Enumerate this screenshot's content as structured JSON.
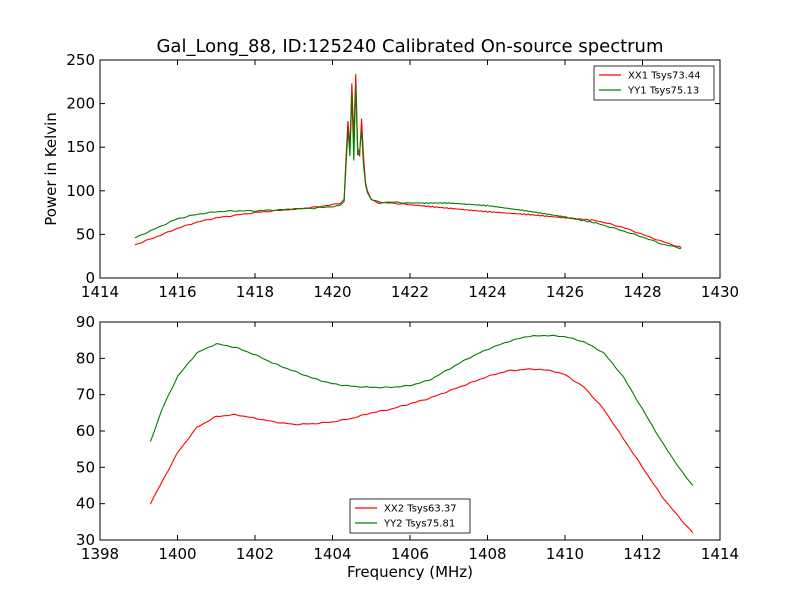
{
  "figure": {
    "title": "Gal_Long_88, ID:125240 Calibrated On-source spectrum",
    "ylabel": "Power in Kelvin",
    "xlabel": "Frequency (MHz)"
  },
  "colors": {
    "red": "#ff0000",
    "green": "#008000"
  },
  "chart_data": [
    {
      "type": "line",
      "xlim": [
        1414,
        1430
      ],
      "ylim": [
        0,
        250
      ],
      "xticks": [
        "1414",
        "1416",
        "1418",
        "1420",
        "1422",
        "1424",
        "1426",
        "1428",
        "1430"
      ],
      "yticks": [
        "0",
        "50",
        "100",
        "150",
        "200",
        "250"
      ],
      "legend_position": "top-right",
      "series": [
        {
          "name": "XX1 Tsys73.44",
          "color": "#ff0000",
          "x": [
            1414.9,
            1415.5,
            1416.0,
            1416.5,
            1417.0,
            1417.5,
            1418.0,
            1418.5,
            1419.0,
            1419.5,
            1420.0,
            1420.2,
            1420.3,
            1420.35,
            1420.4,
            1420.45,
            1420.5,
            1420.55,
            1420.6,
            1420.65,
            1420.7,
            1420.75,
            1420.8,
            1420.85,
            1420.9,
            1421.0,
            1421.2,
            1421.5,
            1422.0,
            1423.0,
            1424.0,
            1425.0,
            1426.0,
            1426.8,
            1427.5,
            1428.0,
            1428.5,
            1429.0
          ],
          "y": [
            38,
            48,
            57,
            64,
            69,
            72,
            75,
            77,
            79,
            81,
            84,
            86,
            90,
            140,
            180,
            150,
            223,
            160,
            234,
            150,
            140,
            183,
            140,
            110,
            100,
            90,
            86,
            86,
            84,
            80,
            76,
            73,
            69,
            66,
            58,
            50,
            42,
            35
          ]
        },
        {
          "name": "YY1 Tsys75.13",
          "color": "#008000",
          "x": [
            1414.9,
            1415.5,
            1416.0,
            1416.5,
            1417.0,
            1417.5,
            1418.0,
            1418.5,
            1419.0,
            1419.5,
            1420.0,
            1420.2,
            1420.3,
            1420.35,
            1420.4,
            1420.45,
            1420.5,
            1420.55,
            1420.6,
            1420.65,
            1420.7,
            1420.75,
            1420.8,
            1420.85,
            1420.9,
            1421.0,
            1421.2,
            1421.5,
            1422.0,
            1423.0,
            1424.0,
            1425.0,
            1426.0,
            1426.8,
            1427.5,
            1428.0,
            1428.5,
            1429.0
          ],
          "y": [
            46,
            58,
            68,
            73,
            76,
            77,
            77,
            78,
            79,
            80,
            82,
            83,
            88,
            130,
            170,
            140,
            210,
            135,
            222,
            140,
            145,
            170,
            130,
            108,
            98,
            90,
            87,
            87,
            86,
            86,
            83,
            77,
            70,
            63,
            54,
            47,
            39,
            34
          ]
        }
      ]
    },
    {
      "type": "line",
      "xlim": [
        1398,
        1414
      ],
      "ylim": [
        30,
        90
      ],
      "xticks": [
        "1398",
        "1400",
        "1402",
        "1404",
        "1406",
        "1408",
        "1410",
        "1412",
        "1414"
      ],
      "yticks": [
        "30",
        "40",
        "50",
        "60",
        "70",
        "80",
        "90"
      ],
      "legend_position": "bottom-center",
      "series": [
        {
          "name": "XX2 Tsys63.37",
          "color": "#ff0000",
          "x": [
            1399.3,
            1399.6,
            1400.0,
            1400.5,
            1401.0,
            1401.5,
            1402.0,
            1402.5,
            1403.0,
            1403.5,
            1404.0,
            1404.5,
            1405.0,
            1405.5,
            1406.0,
            1406.5,
            1407.0,
            1407.5,
            1408.0,
            1408.5,
            1409.0,
            1409.3,
            1409.7,
            1410.0,
            1410.5,
            1411.0,
            1411.5,
            1412.0,
            1412.5,
            1413.0,
            1413.3
          ],
          "y": [
            40,
            46,
            54,
            61,
            64,
            64.5,
            63.5,
            62.5,
            61.8,
            62,
            62.5,
            63.5,
            65,
            66,
            67.5,
            69,
            71,
            73,
            75,
            76.5,
            77,
            77,
            76.5,
            75.5,
            72,
            66,
            58,
            50,
            42,
            35.5,
            32
          ]
        },
        {
          "name": "YY2 Tsys75.81",
          "color": "#008000",
          "x": [
            1399.3,
            1399.6,
            1400.0,
            1400.5,
            1401.0,
            1401.5,
            1402.0,
            1402.5,
            1403.0,
            1403.5,
            1404.0,
            1404.5,
            1405.0,
            1405.5,
            1406.0,
            1406.5,
            1407.0,
            1407.5,
            1408.0,
            1408.5,
            1409.0,
            1409.5,
            1410.0,
            1410.5,
            1411.0,
            1411.5,
            1412.0,
            1412.5,
            1413.0,
            1413.3
          ],
          "y": [
            57,
            66,
            75,
            81.5,
            84,
            83,
            81,
            78.5,
            76.5,
            74.5,
            73,
            72.3,
            72,
            72,
            72.5,
            74,
            77,
            80,
            82.5,
            84.5,
            86,
            86.3,
            86,
            84.5,
            81.5,
            75,
            66,
            57,
            49,
            45
          ]
        }
      ]
    }
  ]
}
